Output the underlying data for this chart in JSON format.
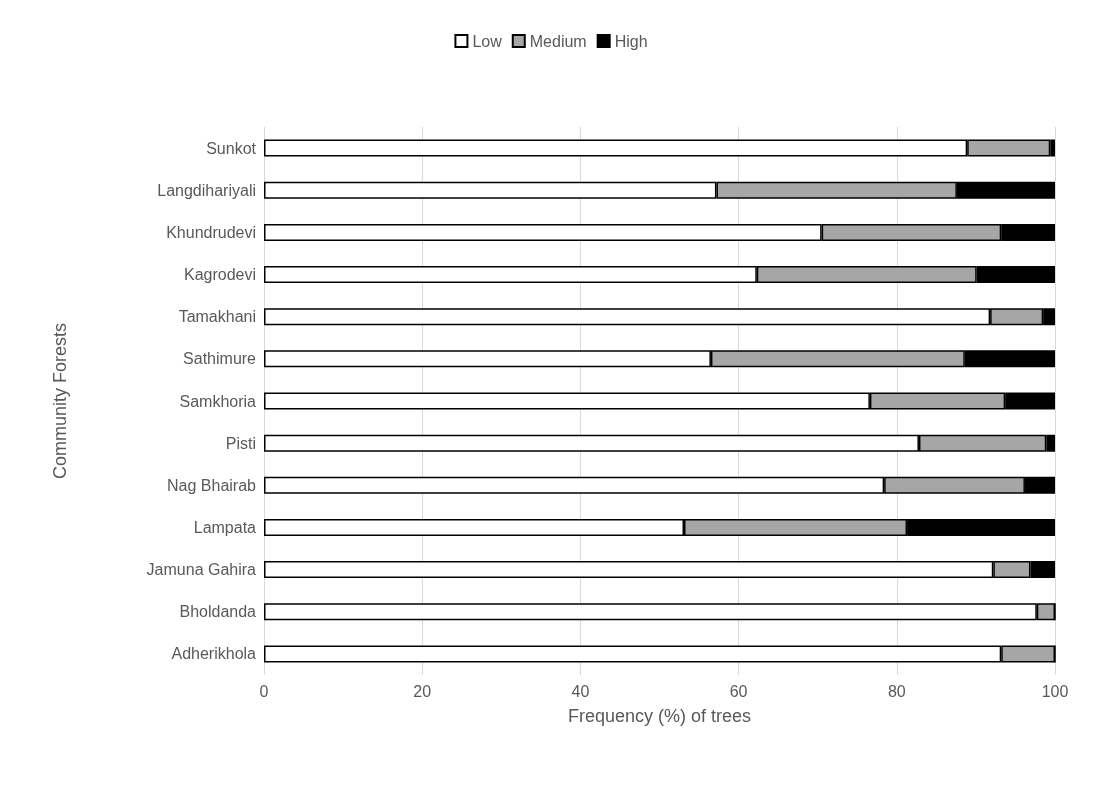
{
  "chart_data": {
    "type": "bar",
    "orientation": "horizontal",
    "stacked": true,
    "xlabel": "Frequency (%) of trees",
    "ylabel": "Community Forests",
    "categories": [
      "Sunkot",
      "Langdihariyali",
      "Khundrudevi",
      "Kagrodevi",
      "Tamakhani",
      "Sathimure",
      "Samkhoria",
      "Pisti",
      "Nag Bhairab",
      "Lampata",
      "Jamuna Gahira",
      "Bholdanda",
      "Adherikhola"
    ],
    "series": [
      {
        "name": "Low",
        "color": "#ffffff",
        "values": [
          88.9,
          57.2,
          70.5,
          62.3,
          91.8,
          56.5,
          76.6,
          82.8,
          78.4,
          53.1,
          92.2,
          97.7,
          93.2
        ]
      },
      {
        "name": "Medium",
        "color": "#a6a6a6",
        "values": [
          10.5,
          30.4,
          22.7,
          27.8,
          6.7,
          32.1,
          17.1,
          16.1,
          17.8,
          28.2,
          4.7,
          2.3,
          6.8
        ]
      },
      {
        "name": "High",
        "color": "#000000",
        "values": [
          0.6,
          12.4,
          6.8,
          9.9,
          1.5,
          11.4,
          6.3,
          1.1,
          3.8,
          18.7,
          3.1,
          0,
          0
        ]
      }
    ],
    "xlim": [
      0,
      100
    ],
    "xticks": [
      0,
      20,
      40,
      60,
      80,
      100
    ],
    "grid": "x",
    "legend": "top"
  }
}
